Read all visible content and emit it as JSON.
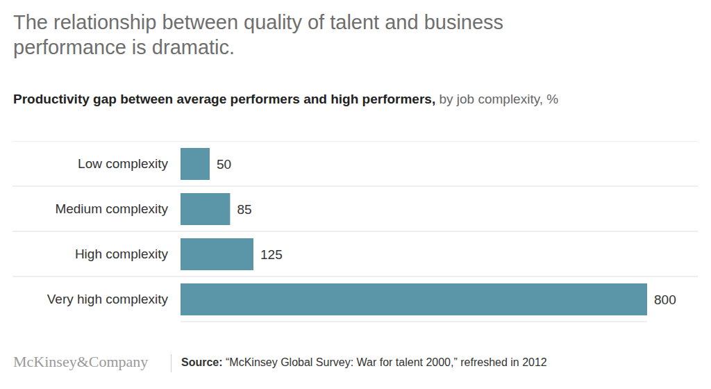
{
  "chart_data": {
    "type": "bar",
    "orientation": "horizontal",
    "title": "The relationship between quality of talent and business performance is dramatic.",
    "subtitle": [
      "Productivity gap between average performers and high performers,",
      "by job complexity, %"
    ],
    "categories": [
      "Low complexity",
      "Medium complexity",
      "High complexity",
      "Very high complexity"
    ],
    "values": [
      50,
      85,
      125,
      800
    ],
    "color": "#5b95a8",
    "xlim": [
      0,
      800
    ],
    "grid": true,
    "data_labels": true,
    "tick_labels": "y",
    "footer": {
      "logo": "McKinsey&Company",
      "source_label": "Source:",
      "source": "“McKinsey Global Survey: War for talent 2000,” refreshed in 2012"
    }
  }
}
